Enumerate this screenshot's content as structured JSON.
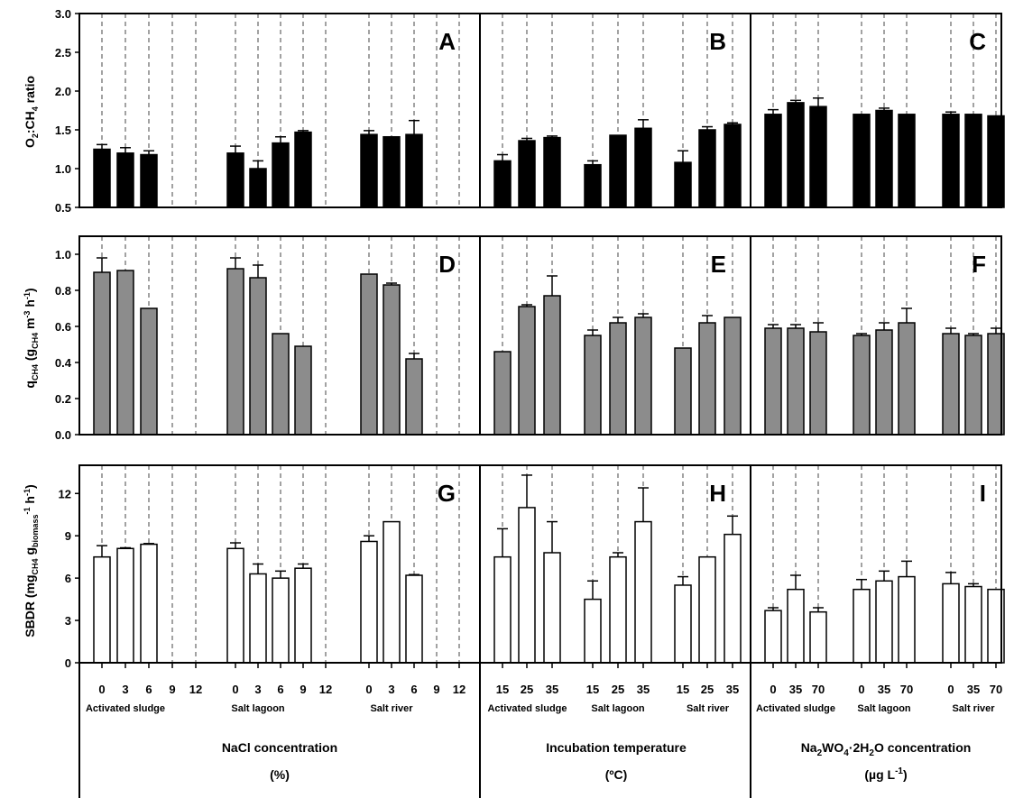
{
  "figure": {
    "row_labels": [
      "O2:CH4 ratio",
      "qCH4 (gCH4 m-3 h-1)",
      "SBDR (mgCH4 gbiomass-1 h-1)"
    ],
    "sections": [
      {
        "title": "NaCl concentration",
        "unit": "(%)"
      },
      {
        "title": "Incubation temperature",
        "unit": "(ºC)"
      },
      {
        "title": "Na2WO4·2H2O concentration",
        "unit": "(µg L-1)"
      }
    ],
    "bar_colors": {
      "row1": "#000000",
      "row2": "#8c8c8c",
      "row3": "#ffffff"
    }
  },
  "chart_data": [
    {
      "panel": "A",
      "type": "bar",
      "ylabel": "O2:CH4 ratio",
      "ylim": [
        0.5,
        3.0
      ],
      "yticks": [
        "0.5",
        "1.0",
        "1.5",
        "2.0",
        "2.5",
        "3.0"
      ],
      "xlabel": "NaCl concentration (%)",
      "groups": [
        {
          "name": "Activated sludge",
          "categories": [
            "0",
            "3",
            "6",
            "9",
            "12"
          ],
          "values": [
            1.25,
            1.2,
            1.18,
            null,
            null
          ],
          "errors": [
            0.06,
            0.07,
            0.05,
            null,
            null
          ]
        },
        {
          "name": "Salt lagoon",
          "categories": [
            "0",
            "3",
            "6",
            "9",
            "12"
          ],
          "values": [
            1.2,
            1.0,
            1.33,
            1.47,
            null
          ],
          "errors": [
            0.09,
            0.1,
            0.08,
            0.02,
            null
          ]
        },
        {
          "name": "Salt river",
          "categories": [
            "0",
            "3",
            "6",
            "9",
            "12"
          ],
          "values": [
            1.44,
            1.41,
            1.44,
            null,
            null
          ],
          "errors": [
            0.05,
            0.0,
            0.18,
            null,
            null
          ]
        }
      ]
    },
    {
      "panel": "B",
      "type": "bar",
      "ylim": [
        0.5,
        3.0
      ],
      "xlabel": "Incubation temperature (ºC)",
      "groups": [
        {
          "name": "Activated sludge",
          "categories": [
            "15",
            "25",
            "35"
          ],
          "values": [
            1.1,
            1.36,
            1.4
          ],
          "errors": [
            0.08,
            0.03,
            0.02
          ]
        },
        {
          "name": "Salt lagoon",
          "categories": [
            "15",
            "25",
            "35"
          ],
          "values": [
            1.05,
            1.43,
            1.52
          ],
          "errors": [
            0.05,
            0.0,
            0.11
          ]
        },
        {
          "name": "Salt river",
          "categories": [
            "15",
            "25",
            "35"
          ],
          "values": [
            1.08,
            1.5,
            1.57
          ],
          "errors": [
            0.15,
            0.04,
            0.02
          ]
        }
      ]
    },
    {
      "panel": "C",
      "type": "bar",
      "ylim": [
        0.5,
        3.0
      ],
      "xlabel": "Na2WO4·2H2O concentration (µg L-1)",
      "groups": [
        {
          "name": "Activated sludge",
          "categories": [
            "0",
            "35",
            "70"
          ],
          "values": [
            1.7,
            1.85,
            1.8
          ],
          "errors": [
            0.06,
            0.03,
            0.11
          ]
        },
        {
          "name": "Salt lagoon",
          "categories": [
            "0",
            "35",
            "70"
          ],
          "values": [
            1.7,
            1.75,
            1.7
          ],
          "errors": [
            0.0,
            0.03,
            0.0
          ]
        },
        {
          "name": "Salt river",
          "categories": [
            "0",
            "35",
            "70"
          ],
          "values": [
            1.7,
            1.7,
            1.68
          ],
          "errors": [
            0.03,
            0.0,
            0.0
          ]
        }
      ]
    },
    {
      "panel": "D",
      "type": "bar",
      "ylabel": "qCH4 (gCH4 m-3 h-1)",
      "ylim": [
        0.0,
        1.1
      ],
      "yticks": [
        "0.0",
        "0.2",
        "0.4",
        "0.6",
        "0.8",
        "1.0"
      ],
      "groups": [
        {
          "name": "Activated sludge",
          "categories": [
            "0",
            "3",
            "6",
            "9",
            "12"
          ],
          "values": [
            0.9,
            0.91,
            0.7,
            null,
            null
          ],
          "errors": [
            0.08,
            0.0,
            0.0,
            null,
            null
          ]
        },
        {
          "name": "Salt lagoon",
          "categories": [
            "0",
            "3",
            "6",
            "9",
            "12"
          ],
          "values": [
            0.92,
            0.87,
            0.56,
            0.49,
            null
          ],
          "errors": [
            0.06,
            0.07,
            0.0,
            0.0,
            null
          ]
        },
        {
          "name": "Salt river",
          "categories": [
            "0",
            "3",
            "6",
            "9",
            "12"
          ],
          "values": [
            0.89,
            0.83,
            0.42,
            null,
            null
          ],
          "errors": [
            0.0,
            0.01,
            0.03,
            null,
            null
          ]
        }
      ]
    },
    {
      "panel": "E",
      "type": "bar",
      "ylim": [
        0.0,
        1.1
      ],
      "groups": [
        {
          "name": "Activated sludge",
          "categories": [
            "15",
            "25",
            "35"
          ],
          "values": [
            0.46,
            0.71,
            0.77
          ],
          "errors": [
            0.0,
            0.01,
            0.11
          ]
        },
        {
          "name": "Salt lagoon",
          "categories": [
            "15",
            "25",
            "35"
          ],
          "values": [
            0.55,
            0.62,
            0.65
          ],
          "errors": [
            0.03,
            0.03,
            0.02
          ]
        },
        {
          "name": "Salt river",
          "categories": [
            "15",
            "25",
            "35"
          ],
          "values": [
            0.48,
            0.62,
            0.65
          ],
          "errors": [
            0.0,
            0.04,
            0.0
          ]
        }
      ]
    },
    {
      "panel": "F",
      "type": "bar",
      "ylim": [
        0.0,
        1.1
      ],
      "groups": [
        {
          "name": "Activated sludge",
          "categories": [
            "0",
            "35",
            "70"
          ],
          "values": [
            0.59,
            0.59,
            0.57
          ],
          "errors": [
            0.02,
            0.02,
            0.05
          ]
        },
        {
          "name": "Salt lagoon",
          "categories": [
            "0",
            "35",
            "70"
          ],
          "values": [
            0.55,
            0.58,
            0.62
          ],
          "errors": [
            0.01,
            0.04,
            0.08
          ]
        },
        {
          "name": "Salt river",
          "categories": [
            "0",
            "35",
            "70"
          ],
          "values": [
            0.56,
            0.55,
            0.56
          ],
          "errors": [
            0.03,
            0.01,
            0.03
          ]
        }
      ]
    },
    {
      "panel": "G",
      "type": "bar",
      "ylabel": "SBDR (mgCH4 gbiomass-1 h-1)",
      "ylim": [
        0,
        14
      ],
      "yticks": [
        "0",
        "3",
        "6",
        "9",
        "12"
      ],
      "groups": [
        {
          "name": "Activated sludge",
          "categories": [
            "0",
            "3",
            "6",
            "9",
            "12"
          ],
          "values": [
            7.5,
            8.1,
            8.4,
            null,
            null
          ],
          "errors": [
            0.8,
            0.05,
            0.05,
            null,
            null
          ]
        },
        {
          "name": "Salt lagoon",
          "categories": [
            "0",
            "3",
            "6",
            "9",
            "12"
          ],
          "values": [
            8.1,
            6.3,
            6.0,
            6.7,
            null
          ],
          "errors": [
            0.4,
            0.7,
            0.5,
            0.3,
            null
          ]
        },
        {
          "name": "Salt river",
          "categories": [
            "0",
            "3",
            "6",
            "9",
            "12"
          ],
          "values": [
            8.6,
            10.0,
            6.2,
            null,
            null
          ],
          "errors": [
            0.4,
            0.0,
            0.05,
            null,
            null
          ]
        }
      ]
    },
    {
      "panel": "H",
      "type": "bar",
      "ylim": [
        0,
        14
      ],
      "groups": [
        {
          "name": "Activated sludge",
          "categories": [
            "15",
            "25",
            "35"
          ],
          "values": [
            7.5,
            11.0,
            7.8
          ],
          "errors": [
            2.0,
            2.3,
            2.2
          ]
        },
        {
          "name": "Salt lagoon",
          "categories": [
            "15",
            "25",
            "35"
          ],
          "values": [
            4.5,
            7.5,
            10.0
          ],
          "errors": [
            1.3,
            0.3,
            2.4
          ]
        },
        {
          "name": "Salt river",
          "categories": [
            "15",
            "25",
            "35"
          ],
          "values": [
            5.5,
            7.5,
            9.1
          ],
          "errors": [
            0.6,
            0.0,
            1.3
          ]
        }
      ]
    },
    {
      "panel": "I",
      "type": "bar",
      "ylim": [
        0,
        14
      ],
      "groups": [
        {
          "name": "Activated sludge",
          "categories": [
            "0",
            "35",
            "70"
          ],
          "values": [
            3.7,
            5.2,
            3.6
          ],
          "errors": [
            0.2,
            1.0,
            0.3
          ]
        },
        {
          "name": "Salt lagoon",
          "categories": [
            "0",
            "35",
            "70"
          ],
          "values": [
            5.2,
            5.8,
            6.1
          ],
          "errors": [
            0.7,
            0.7,
            1.1
          ]
        },
        {
          "name": "Salt river",
          "categories": [
            "0",
            "35",
            "70"
          ],
          "values": [
            5.6,
            5.4,
            5.2
          ],
          "errors": [
            0.8,
            0.2,
            0.0
          ]
        }
      ]
    }
  ]
}
